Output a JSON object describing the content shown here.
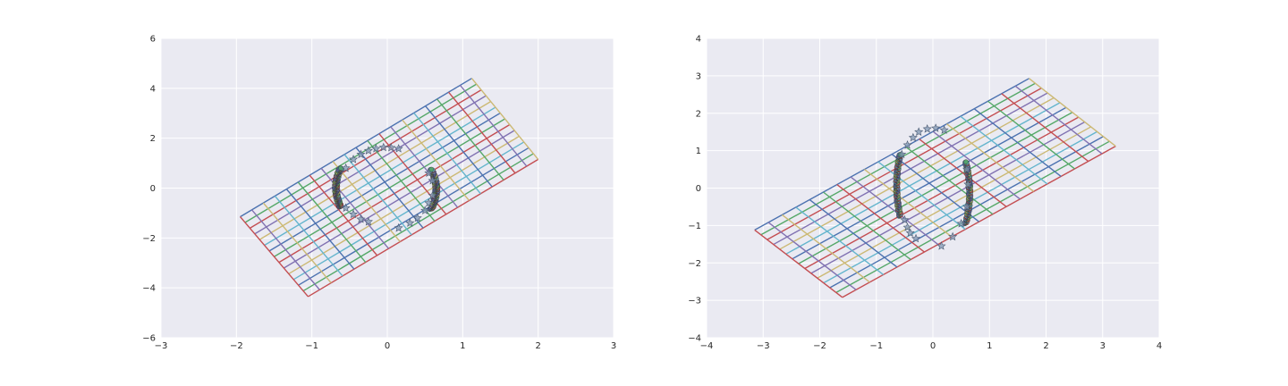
{
  "palette": [
    "#4c72b0",
    "#55a868",
    "#c44e52",
    "#8172b2",
    "#ccb974",
    "#64b5cd"
  ],
  "background_color": "#eaeaf2",
  "grid_color": "#ffffff",
  "star_color": "#7f96b2",
  "chart_data": [
    {
      "type": "line",
      "title": "",
      "xlabel": "",
      "ylabel": "",
      "xlim": [
        -3,
        3
      ],
      "ylim": [
        -6,
        6
      ],
      "xticks": [
        -3,
        -2,
        -1,
        0,
        1,
        2,
        3
      ],
      "yticks": [
        -6,
        -4,
        -2,
        0,
        2,
        4,
        6
      ],
      "grid": true,
      "legend": "none",
      "mesh": {
        "corners": [
          [
            -1.95,
            -1.15
          ],
          [
            1.12,
            4.4
          ],
          [
            2.0,
            1.15
          ],
          [
            -1.05,
            -4.35
          ]
        ],
        "n_long_lines": 15,
        "n_cross_lines": 21
      },
      "scatter_series": [
        {
          "marker": "star",
          "points": [
            [
              -0.55,
              0.8
            ],
            [
              -0.45,
              1.15
            ],
            [
              -0.35,
              1.35
            ],
            [
              -0.25,
              1.5
            ],
            [
              -0.15,
              1.58
            ],
            [
              -0.05,
              1.63
            ],
            [
              0.05,
              1.62
            ],
            [
              0.15,
              1.58
            ],
            [
              -0.55,
              -0.8
            ],
            [
              -0.45,
              -1.05
            ],
            [
              -0.35,
              -1.25
            ],
            [
              -0.25,
              -1.35
            ],
            [
              0.15,
              -1.6
            ],
            [
              0.3,
              -1.4
            ],
            [
              0.4,
              -1.2
            ],
            [
              0.5,
              -0.9
            ],
            [
              0.55,
              0.6
            ],
            [
              0.6,
              0.3
            ],
            [
              0.6,
              -0.3
            ],
            [
              0.55,
              -0.6
            ]
          ]
        },
        {
          "marker": "dot",
          "arcs": [
            {
              "center_x": -0.62,
              "y_min": -0.75,
              "y_max": 0.8,
              "bulge": -0.06
            },
            {
              "center_x": 0.58,
              "y_min": -0.85,
              "y_max": 0.75,
              "bulge": 0.07
            }
          ]
        }
      ]
    },
    {
      "type": "line",
      "title": "",
      "xlabel": "",
      "ylabel": "",
      "xlim": [
        -4,
        4
      ],
      "ylim": [
        -4,
        4
      ],
      "xticks": [
        -4,
        -3,
        -2,
        -1,
        0,
        1,
        2,
        3,
        4
      ],
      "yticks": [
        -4,
        -3,
        -2,
        -1,
        0,
        1,
        2,
        3,
        4
      ],
      "grid": true,
      "legend": "none",
      "mesh": {
        "corners": [
          [
            -3.15,
            -1.12
          ],
          [
            1.7,
            2.93
          ],
          [
            3.23,
            1.12
          ],
          [
            -1.6,
            -2.92
          ]
        ],
        "n_long_lines": 15,
        "n_cross_lines": 21
      },
      "scatter_series": [
        {
          "marker": "star",
          "points": [
            [
              -0.55,
              0.9
            ],
            [
              -0.45,
              1.15
            ],
            [
              -0.35,
              1.35
            ],
            [
              -0.25,
              1.5
            ],
            [
              -0.1,
              1.58
            ],
            [
              0.05,
              1.6
            ],
            [
              0.2,
              1.55
            ],
            [
              -0.5,
              -0.85
            ],
            [
              -0.45,
              -1.05
            ],
            [
              -0.4,
              -1.2
            ],
            [
              -0.3,
              -1.35
            ],
            [
              0.15,
              -1.55
            ],
            [
              0.35,
              -1.3
            ],
            [
              0.5,
              -0.95
            ],
            [
              0.6,
              0.5
            ],
            [
              0.62,
              0.1
            ],
            [
              0.6,
              -0.5
            ]
          ]
        },
        {
          "marker": "dot",
          "arcs": [
            {
              "center_x": -0.58,
              "y_min": -0.75,
              "y_max": 0.9,
              "bulge": -0.06
            },
            {
              "center_x": 0.58,
              "y_min": -0.95,
              "y_max": 0.7,
              "bulge": 0.07
            }
          ]
        }
      ]
    }
  ]
}
